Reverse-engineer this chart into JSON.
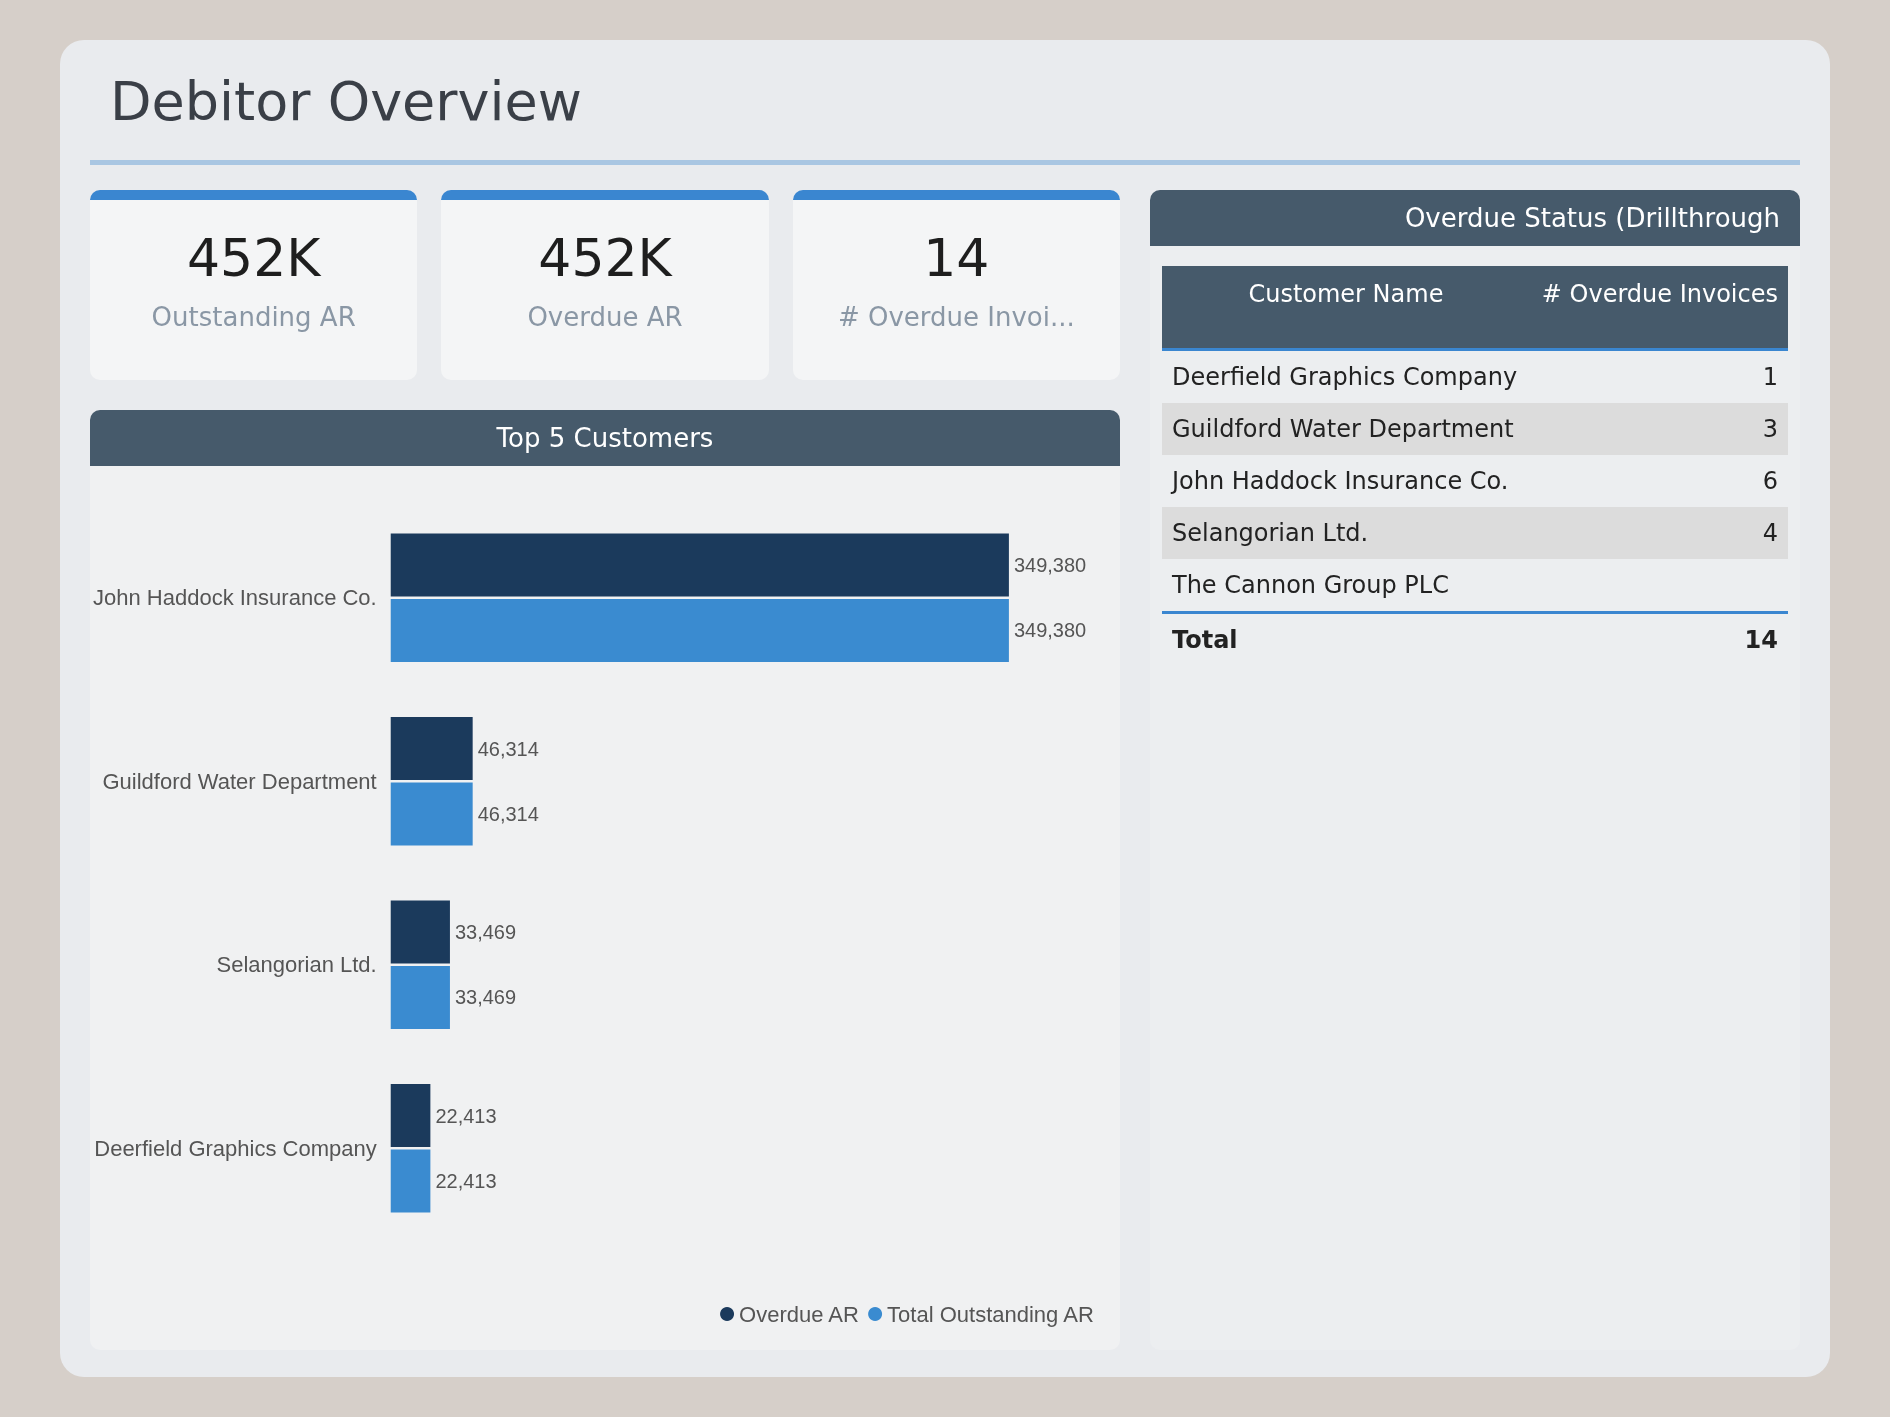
{
  "chart_data": [
    {
      "type": "other",
      "title": "Debitor Overview",
      "annotations": [
        "452K",
        "Outstanding AR",
        "452K",
        "Overdue AR",
        "14",
        "# Overdue Invoi..."
      ]
    },
    {
      "type": "bar",
      "orientation": "horizontal",
      "title": "Top 5 Customers",
      "categories": [
        "John Haddock Insurance Co.",
        "Guildford Water Department",
        "Selangorian Ltd.",
        "Deerfield Graphics Company"
      ],
      "series": [
        {
          "name": "Overdue AR",
          "color": "#1b3a5c",
          "values": [
            349380,
            46314,
            33469,
            22413
          ],
          "value_labels": [
            "349,380",
            "46,314",
            "33,469",
            "22,413"
          ]
        },
        {
          "name": "Total Outstanding AR",
          "color": "#3a8bd0",
          "values": [
            349380,
            46314,
            33469,
            22413
          ],
          "value_labels": [
            "349,380",
            "46,314",
            "33,469",
            "22,413"
          ]
        }
      ],
      "legend": "bottom right",
      "tick_labels": "y",
      "grid": false
    },
    {
      "type": "other",
      "title": "Overdue Status (Drillthrough",
      "xlabel": "Customer Name",
      "ylabel": "# Overdue Invoices",
      "categories": [
        "Deerfield Graphics Company",
        "Guildford Water Department",
        "John Haddock Insurance Co.",
        "Selangorian Ltd.",
        "The Cannon Group PLC",
        "Total"
      ],
      "values": [
        1,
        3,
        6,
        4,
        null,
        14
      ],
      "data_labels": true
    }
  ]
}
